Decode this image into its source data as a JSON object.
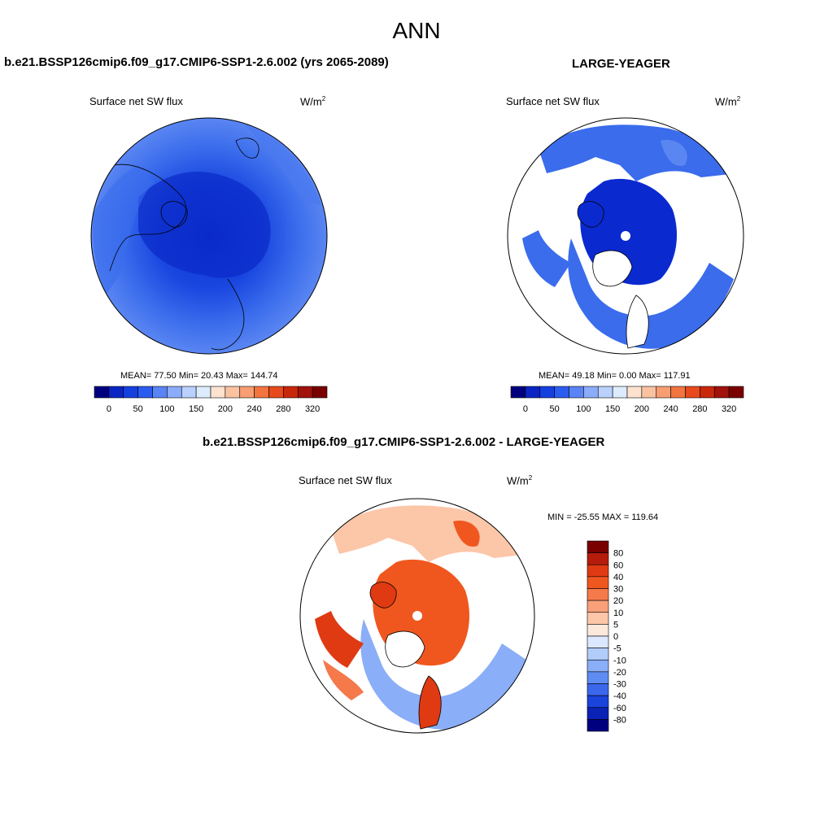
{
  "page": {
    "main_title": "ANN",
    "left_title": "b.e21.BSSP126cmip6.f09_g17.CMIP6-SSP1-2.6.002 (yrs 2065-2089)",
    "right_title": "LARGE-YEAGER",
    "diff_title": "b.e21.BSSP126cmip6.f09_g17.CMIP6-SSP1-2.6.002 - LARGE-YEAGER"
  },
  "panels": {
    "left": {
      "variable": "Surface net SW flux",
      "units": "W/m",
      "units_sup": "2",
      "stats": "MEAN=  77.50  Min=  20.43  Max= 144.74"
    },
    "right": {
      "variable": "Surface net SW flux",
      "units": "W/m",
      "units_sup": "2",
      "stats": "MEAN=  49.18  Min=   0.00  Max= 117.91"
    },
    "diff": {
      "variable": "Surface net SW flux",
      "units": "W/m",
      "units_sup": "2",
      "stats": "MIN = -25.55 MAX = 119.64"
    }
  },
  "colorbar_abs": {
    "labels": [
      "0",
      "50",
      "100",
      "150",
      "200",
      "240",
      "280",
      "320"
    ],
    "colors": [
      "#00007f",
      "#0b25c4",
      "#1540e0",
      "#2b5cf0",
      "#5a84f5",
      "#8bacfa",
      "#b9d1fc",
      "#ddebff",
      "#fde3cf",
      "#fbc2a2",
      "#f89e72",
      "#f2743f",
      "#e84a1d",
      "#c9270c",
      "#a0120a",
      "#7a0000"
    ]
  },
  "colorbar_diff": {
    "labels": [
      "80",
      "60",
      "40",
      "30",
      "20",
      "10",
      "5",
      "0",
      "-5",
      "-10",
      "-20",
      "-30",
      "-40",
      "-60",
      "-80"
    ],
    "colors": [
      "#7a0000",
      "#b51c0c",
      "#e03a12",
      "#f0571f",
      "#f5794a",
      "#f9a07a",
      "#fcc6a8",
      "#fde9dc",
      "#dbe8ff",
      "#b3cdfb",
      "#8aaef7",
      "#5f8cf2",
      "#3a67ec",
      "#1a44dc",
      "#0a22b5",
      "#00007f"
    ]
  }
}
